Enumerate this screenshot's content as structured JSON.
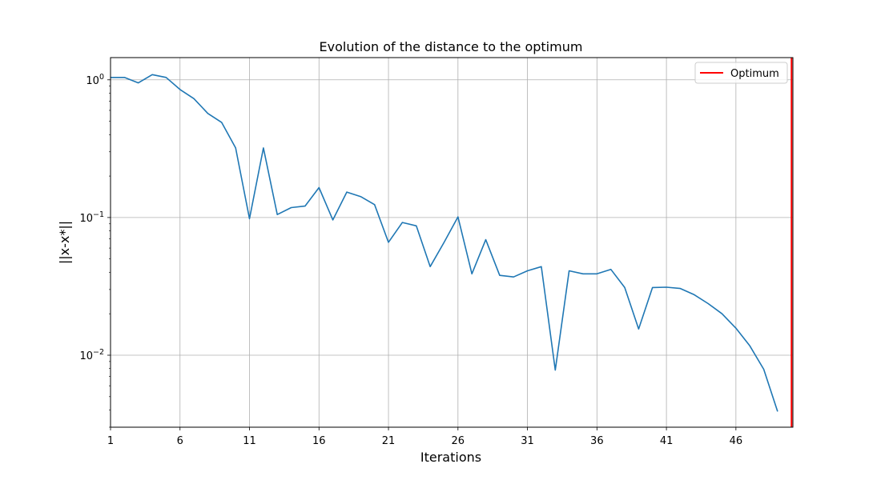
{
  "chart_data": {
    "type": "line",
    "title": "Evolution of the distance to the optimum",
    "xlabel": "Iterations",
    "ylabel": "||x-x*||",
    "yscale": "log",
    "xlim": [
      1,
      50.1
    ],
    "ylim": [
      0.003,
      1.45
    ],
    "xticks": [
      1,
      6,
      11,
      16,
      21,
      26,
      31,
      36,
      41,
      46
    ],
    "yticks": [
      {
        "value": 1,
        "base": "10",
        "exp": "0"
      },
      {
        "value": 0.1,
        "base": "10",
        "exp": "−1"
      },
      {
        "value": 0.01,
        "base": "10",
        "exp": "−2"
      }
    ],
    "grid": true,
    "legend_position": "top-right",
    "series": [
      {
        "color": "#1f77b4",
        "x": [
          1,
          2,
          3,
          4,
          5,
          6,
          7,
          8,
          9,
          10,
          11,
          12,
          13,
          14,
          15,
          16,
          17,
          18,
          19,
          20,
          21,
          22,
          23,
          24,
          25,
          26,
          27,
          28,
          29,
          30,
          31,
          32,
          33,
          34,
          35,
          36,
          37,
          38,
          39,
          40,
          41,
          42,
          43,
          44,
          45,
          46,
          47,
          48,
          49
        ],
        "y": [
          1.04,
          1.04,
          0.95,
          1.09,
          1.04,
          0.85,
          0.73,
          0.57,
          0.49,
          0.32,
          0.098,
          0.32,
          0.105,
          0.118,
          0.121,
          0.165,
          0.096,
          0.153,
          0.142,
          0.124,
          0.066,
          0.092,
          0.087,
          0.044,
          0.066,
          0.101,
          0.039,
          0.069,
          0.038,
          0.037,
          0.041,
          0.044,
          0.0078,
          0.041,
          0.039,
          0.039,
          0.042,
          0.031,
          0.0155,
          0.031,
          0.0312,
          0.0305,
          0.0275,
          0.0237,
          0.02,
          0.0157,
          0.0117,
          0.0079,
          0.0039
        ]
      },
      {
        "name": "Optimum",
        "type": "vline",
        "x": 50,
        "color": "#ff0000"
      }
    ]
  }
}
